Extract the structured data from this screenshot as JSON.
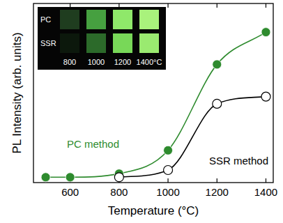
{
  "chart_data": {
    "type": "line",
    "x_label": "Temperature (°C)",
    "y_label": "PL Intensity (arb. units)",
    "series": [
      {
        "name": "PC method",
        "color": "#2e8b2e",
        "marker": "circle",
        "x": [
          500,
          600,
          800,
          1000,
          1200,
          1400
        ],
        "values": [
          3,
          3,
          5,
          18,
          66,
          84
        ]
      },
      {
        "name": "SSR method",
        "color": "#000000",
        "marker": "open-circle",
        "x": [
          800,
          1000,
          1200,
          1400
        ],
        "values": [
          3,
          7,
          44,
          48
        ]
      }
    ],
    "xlim": [
      450,
      1430
    ],
    "xticks": [
      600,
      800,
      1000,
      1200,
      1400
    ],
    "ylim": [
      0,
      100
    ],
    "yticks": [],
    "tick_labels": "x",
    "grid": false,
    "inset": {
      "rows": [
        "PC",
        "SSR"
      ],
      "columns": [
        "800",
        "1000",
        "1200",
        "1400°C"
      ]
    }
  }
}
